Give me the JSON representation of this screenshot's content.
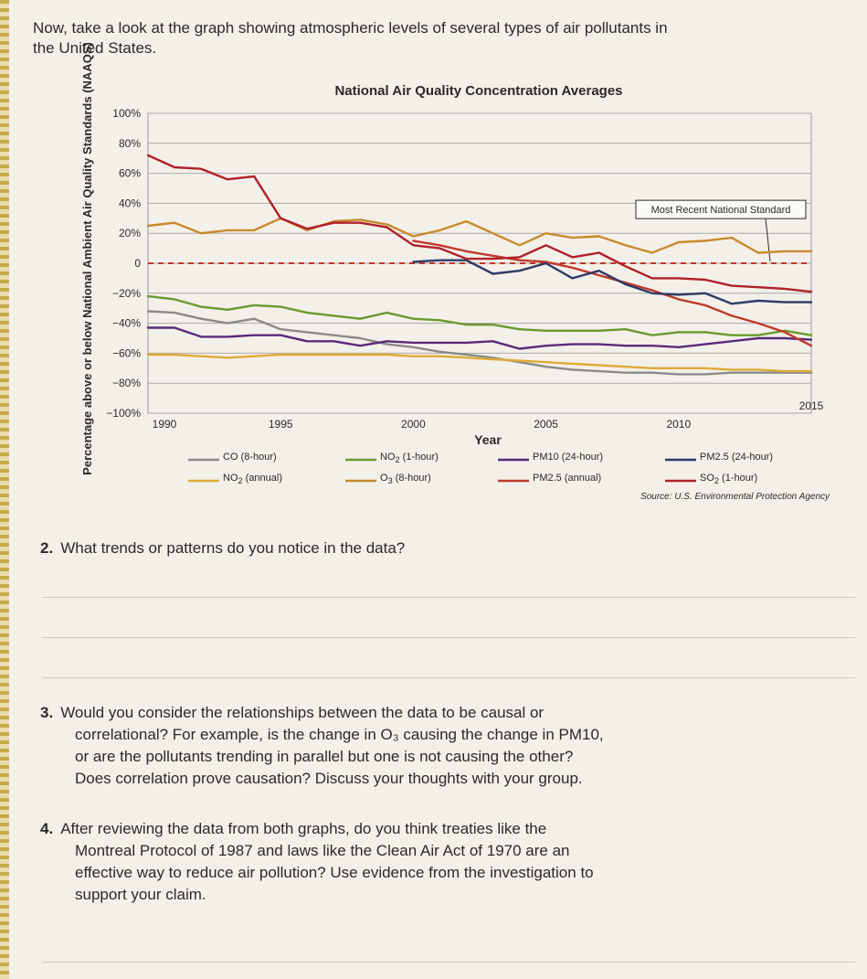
{
  "intro_text": "Now, take a look at the graph showing atmospheric levels of several types of air pollutants in the United States.",
  "chart_data": {
    "type": "line",
    "title": "National Air Quality Concentration Averages",
    "ylabel": "Percentage above or below National Ambient Air Quality Standards (NAAQS)",
    "xlabel": "Year",
    "xlim": [
      1990,
      2015
    ],
    "ylim": [
      -100,
      100
    ],
    "x_ticks": [
      1990,
      1995,
      2000,
      2005,
      2010,
      2015
    ],
    "y_ticks": [
      100,
      80,
      60,
      40,
      20,
      0,
      -20,
      -40,
      -60,
      -80,
      -100
    ],
    "y_tick_labels": [
      "100%",
      "80%",
      "60%",
      "40%",
      "20%",
      "0",
      "−20%",
      "−40%",
      "−60%",
      "−80%",
      "−100%"
    ],
    "grid": true,
    "reference_line": {
      "value": 0,
      "label": "Most Recent National Standard",
      "color": "#c0392b",
      "style": "dashed"
    },
    "source": "Source: U.S. Environmental Protection Agency",
    "series": [
      {
        "name": "CO (8-hour)",
        "legend_html": "CO (8-hour)",
        "color": "#8a8a8a",
        "x": [
          1990,
          1991,
          1992,
          1993,
          1994,
          1995,
          1996,
          1997,
          1998,
          1999,
          2000,
          2001,
          2002,
          2003,
          2004,
          2005,
          2006,
          2007,
          2008,
          2009,
          2010,
          2011,
          2012,
          2013,
          2014,
          2015
        ],
        "y": [
          -32,
          -33,
          -37,
          -40,
          -37,
          -44,
          -46,
          -48,
          -50,
          -54,
          -56,
          -59,
          -61,
          -63,
          -66,
          -69,
          -71,
          -72,
          -73,
          -73,
          -74,
          -74,
          -73,
          -73,
          -73,
          -73
        ]
      },
      {
        "name": "NO2 (annual)",
        "legend_html": "NO<sub>2</sub> (annual)",
        "color": "#e0a936",
        "x": [
          1990,
          1991,
          1992,
          1993,
          1994,
          1995,
          1996,
          1997,
          1998,
          1999,
          2000,
          2001,
          2002,
          2003,
          2004,
          2005,
          2006,
          2007,
          2008,
          2009,
          2010,
          2011,
          2012,
          2013,
          2014,
          2015
        ],
        "y": [
          -61,
          -61,
          -62,
          -63,
          -62,
          -61,
          -61,
          -61,
          -61,
          -61,
          -62,
          -62,
          -63,
          -64,
          -65,
          -66,
          -67,
          -68,
          -69,
          -70,
          -70,
          -70,
          -71,
          -71,
          -72,
          -72
        ]
      },
      {
        "name": "NO2 (1-hour)",
        "legend_html": "NO<sub>2</sub> (1-hour)",
        "color": "#6a9a2e",
        "x": [
          1990,
          1991,
          1992,
          1993,
          1994,
          1995,
          1996,
          1997,
          1998,
          1999,
          2000,
          2001,
          2002,
          2003,
          2004,
          2005,
          2006,
          2007,
          2008,
          2009,
          2010,
          2011,
          2012,
          2013,
          2014,
          2015
        ],
        "y": [
          -22,
          -24,
          -29,
          -31,
          -28,
          -29,
          -33,
          -35,
          -37,
          -33,
          -37,
          -38,
          -41,
          -41,
          -44,
          -45,
          -45,
          -45,
          -44,
          -48,
          -46,
          -46,
          -48,
          -48,
          -45,
          -48
        ]
      },
      {
        "name": "O3 (8-hour)",
        "legend_html": "O<sub>3</sub> (8-hour)",
        "color": "#c98a2c",
        "x": [
          1990,
          1991,
          1992,
          1993,
          1994,
          1995,
          1996,
          1997,
          1998,
          1999,
          2000,
          2001,
          2002,
          2003,
          2004,
          2005,
          2006,
          2007,
          2008,
          2009,
          2010,
          2011,
          2012,
          2013,
          2014,
          2015
        ],
        "y": [
          25,
          27,
          20,
          22,
          22,
          30,
          22,
          28,
          29,
          26,
          18,
          22,
          28,
          20,
          12,
          20,
          17,
          18,
          12,
          7,
          14,
          15,
          17,
          7,
          8,
          8
        ]
      },
      {
        "name": "PM10 (24-hour)",
        "legend_html": "PM10 (24-hour)",
        "color": "#5a2a7a",
        "x": [
          1990,
          1991,
          1992,
          1993,
          1994,
          1995,
          1996,
          1997,
          1998,
          1999,
          2000,
          2001,
          2002,
          2003,
          2004,
          2005,
          2006,
          2007,
          2008,
          2009,
          2010,
          2011,
          2012,
          2013,
          2014,
          2015
        ],
        "y": [
          -43,
          -43,
          -49,
          -49,
          -48,
          -48,
          -52,
          -52,
          -55,
          -52,
          -53,
          -53,
          -53,
          -52,
          -57,
          -55,
          -54,
          -54,
          -55,
          -55,
          -56,
          -54,
          -52,
          -50,
          -50,
          -51
        ]
      },
      {
        "name": "PM2.5 (annual)",
        "legend_html": "PM2.5 (annual)",
        "color": "#c0392b",
        "x": [
          2000,
          2001,
          2002,
          2003,
          2004,
          2005,
          2006,
          2007,
          2008,
          2009,
          2010,
          2011,
          2012,
          2013,
          2014,
          2015
        ],
        "y": [
          15,
          12,
          8,
          5,
          2,
          1,
          -3,
          -8,
          -13,
          -18,
          -24,
          -28,
          -35,
          -40,
          -46,
          -55
        ]
      },
      {
        "name": "PM2.5 (24-hour)",
        "legend_html": "PM2.5 (24-hour)",
        "color": "#2d3b66",
        "x": [
          2000,
          2001,
          2002,
          2003,
          2004,
          2005,
          2006,
          2007,
          2008,
          2009,
          2010,
          2011,
          2012,
          2013,
          2014,
          2015
        ],
        "y": [
          1,
          2,
          2,
          -7,
          -5,
          0,
          -10,
          -5,
          -14,
          -20,
          -21,
          -20,
          -27,
          -25,
          -26,
          -26
        ]
      },
      {
        "name": "SO2 (1-hour)",
        "legend_html": "SO<sub>2</sub> (1-hour)",
        "color": "#b0202a",
        "x": [
          1990,
          1991,
          1992,
          1993,
          1994,
          1995,
          1996,
          1997,
          1998,
          1999,
          2000,
          2001,
          2002,
          2003,
          2004,
          2005,
          2006,
          2007,
          2008,
          2009,
          2010,
          2011,
          2012,
          2013,
          2014,
          2015
        ],
        "y": [
          72,
          64,
          63,
          56,
          58,
          30,
          23,
          27,
          27,
          24,
          12,
          10,
          3,
          3,
          4,
          12,
          4,
          7,
          -2,
          -10,
          -10,
          -11,
          -15,
          -16,
          -17,
          -19
        ]
      }
    ]
  },
  "questions": [
    {
      "number": "2.",
      "lines": [
        "What trends or patterns do you notice in the data?"
      ]
    },
    {
      "number": "3.",
      "lines": [
        "Would you consider the relationships between the data to be causal or",
        "correlational? For example, is the change in O₃ causing the change in PM10,",
        "or are the pollutants trending in parallel but one is not causing the other?",
        "Does correlation prove causation? Discuss your thoughts with your group."
      ]
    },
    {
      "number": "4.",
      "lines": [
        "After reviewing the data from both graphs, do you think treaties like the",
        "Montreal Protocol of 1987 and laws like the Clean Air Act of 1970 are an",
        "effective way to reduce air pollution? Use evidence from the investigation to",
        "support your claim."
      ]
    }
  ]
}
